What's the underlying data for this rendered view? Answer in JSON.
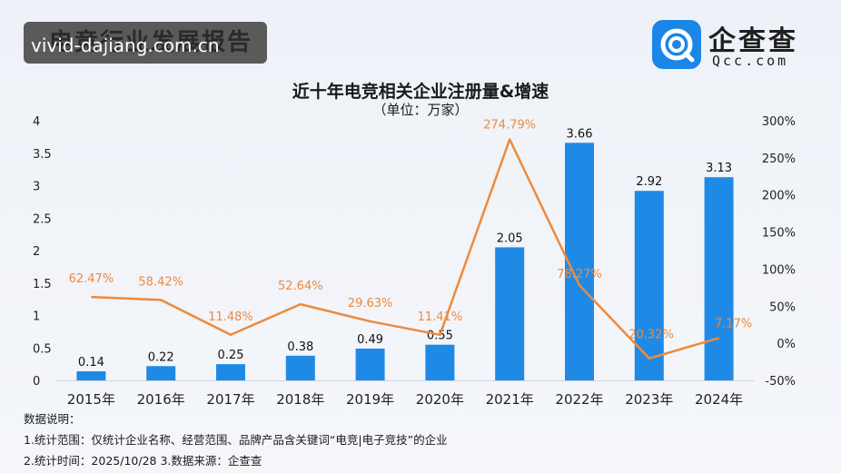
{
  "header": {
    "report_title": "电竞行业发展报告",
    "watermark_url": "vivid-dajiang.com.cn"
  },
  "logo": {
    "name": "企查查",
    "subname": "Qcc.com",
    "brand_color": "#1c86e8"
  },
  "chart_data": {
    "type": "bar",
    "title": "近十年电竞相关企业注册量&增速",
    "subtitle": "（单位：万家）",
    "categories": [
      "2015年",
      "2016年",
      "2017年",
      "2018年",
      "2019年",
      "2020年",
      "2021年",
      "2022年",
      "2023年",
      "2024年"
    ],
    "series": [
      {
        "type": "bar",
        "axis": "left",
        "color": "#1f8ae6",
        "values": [
          0.14,
          0.22,
          0.25,
          0.38,
          0.49,
          0.55,
          2.05,
          3.66,
          2.92,
          3.13
        ],
        "labels": [
          "0.14",
          "0.22",
          "0.25",
          "0.38",
          "0.49",
          "0.55",
          "2.05",
          "3.66",
          "2.92",
          "3.13"
        ]
      },
      {
        "type": "line",
        "axis": "right",
        "color": "#ee8a3c",
        "values": [
          62.47,
          58.42,
          11.48,
          52.64,
          29.63,
          11.41,
          274.79,
          78.27,
          -20.32,
          7.17
        ],
        "labels": [
          "62.47%",
          "58.42%",
          "11.48%",
          "52.64%",
          "29.63%",
          "11.41%",
          "274.79%",
          "78.27%",
          "-20.32%",
          "7.17%"
        ]
      }
    ],
    "y_left": {
      "ylim": [
        0,
        4
      ],
      "ticks": [
        "0",
        "0.5",
        "1",
        "1.5",
        "2",
        "2.5",
        "3",
        "3.5",
        "4"
      ]
    },
    "y_right": {
      "ylim": [
        -50,
        300
      ],
      "ticks": [
        "-50%",
        "0%",
        "50%",
        "100%",
        "150%",
        "200%",
        "250%",
        "300%"
      ]
    },
    "grid": false
  },
  "notes": {
    "heading": "数据说明：",
    "line1": "1.统计范围：仅统计企业名称、经营范围、品牌产品含关键词“电竞|电子竞技”的企业",
    "line2": "2.统计时间：2025/10/28 3.数据来源：企查查"
  }
}
